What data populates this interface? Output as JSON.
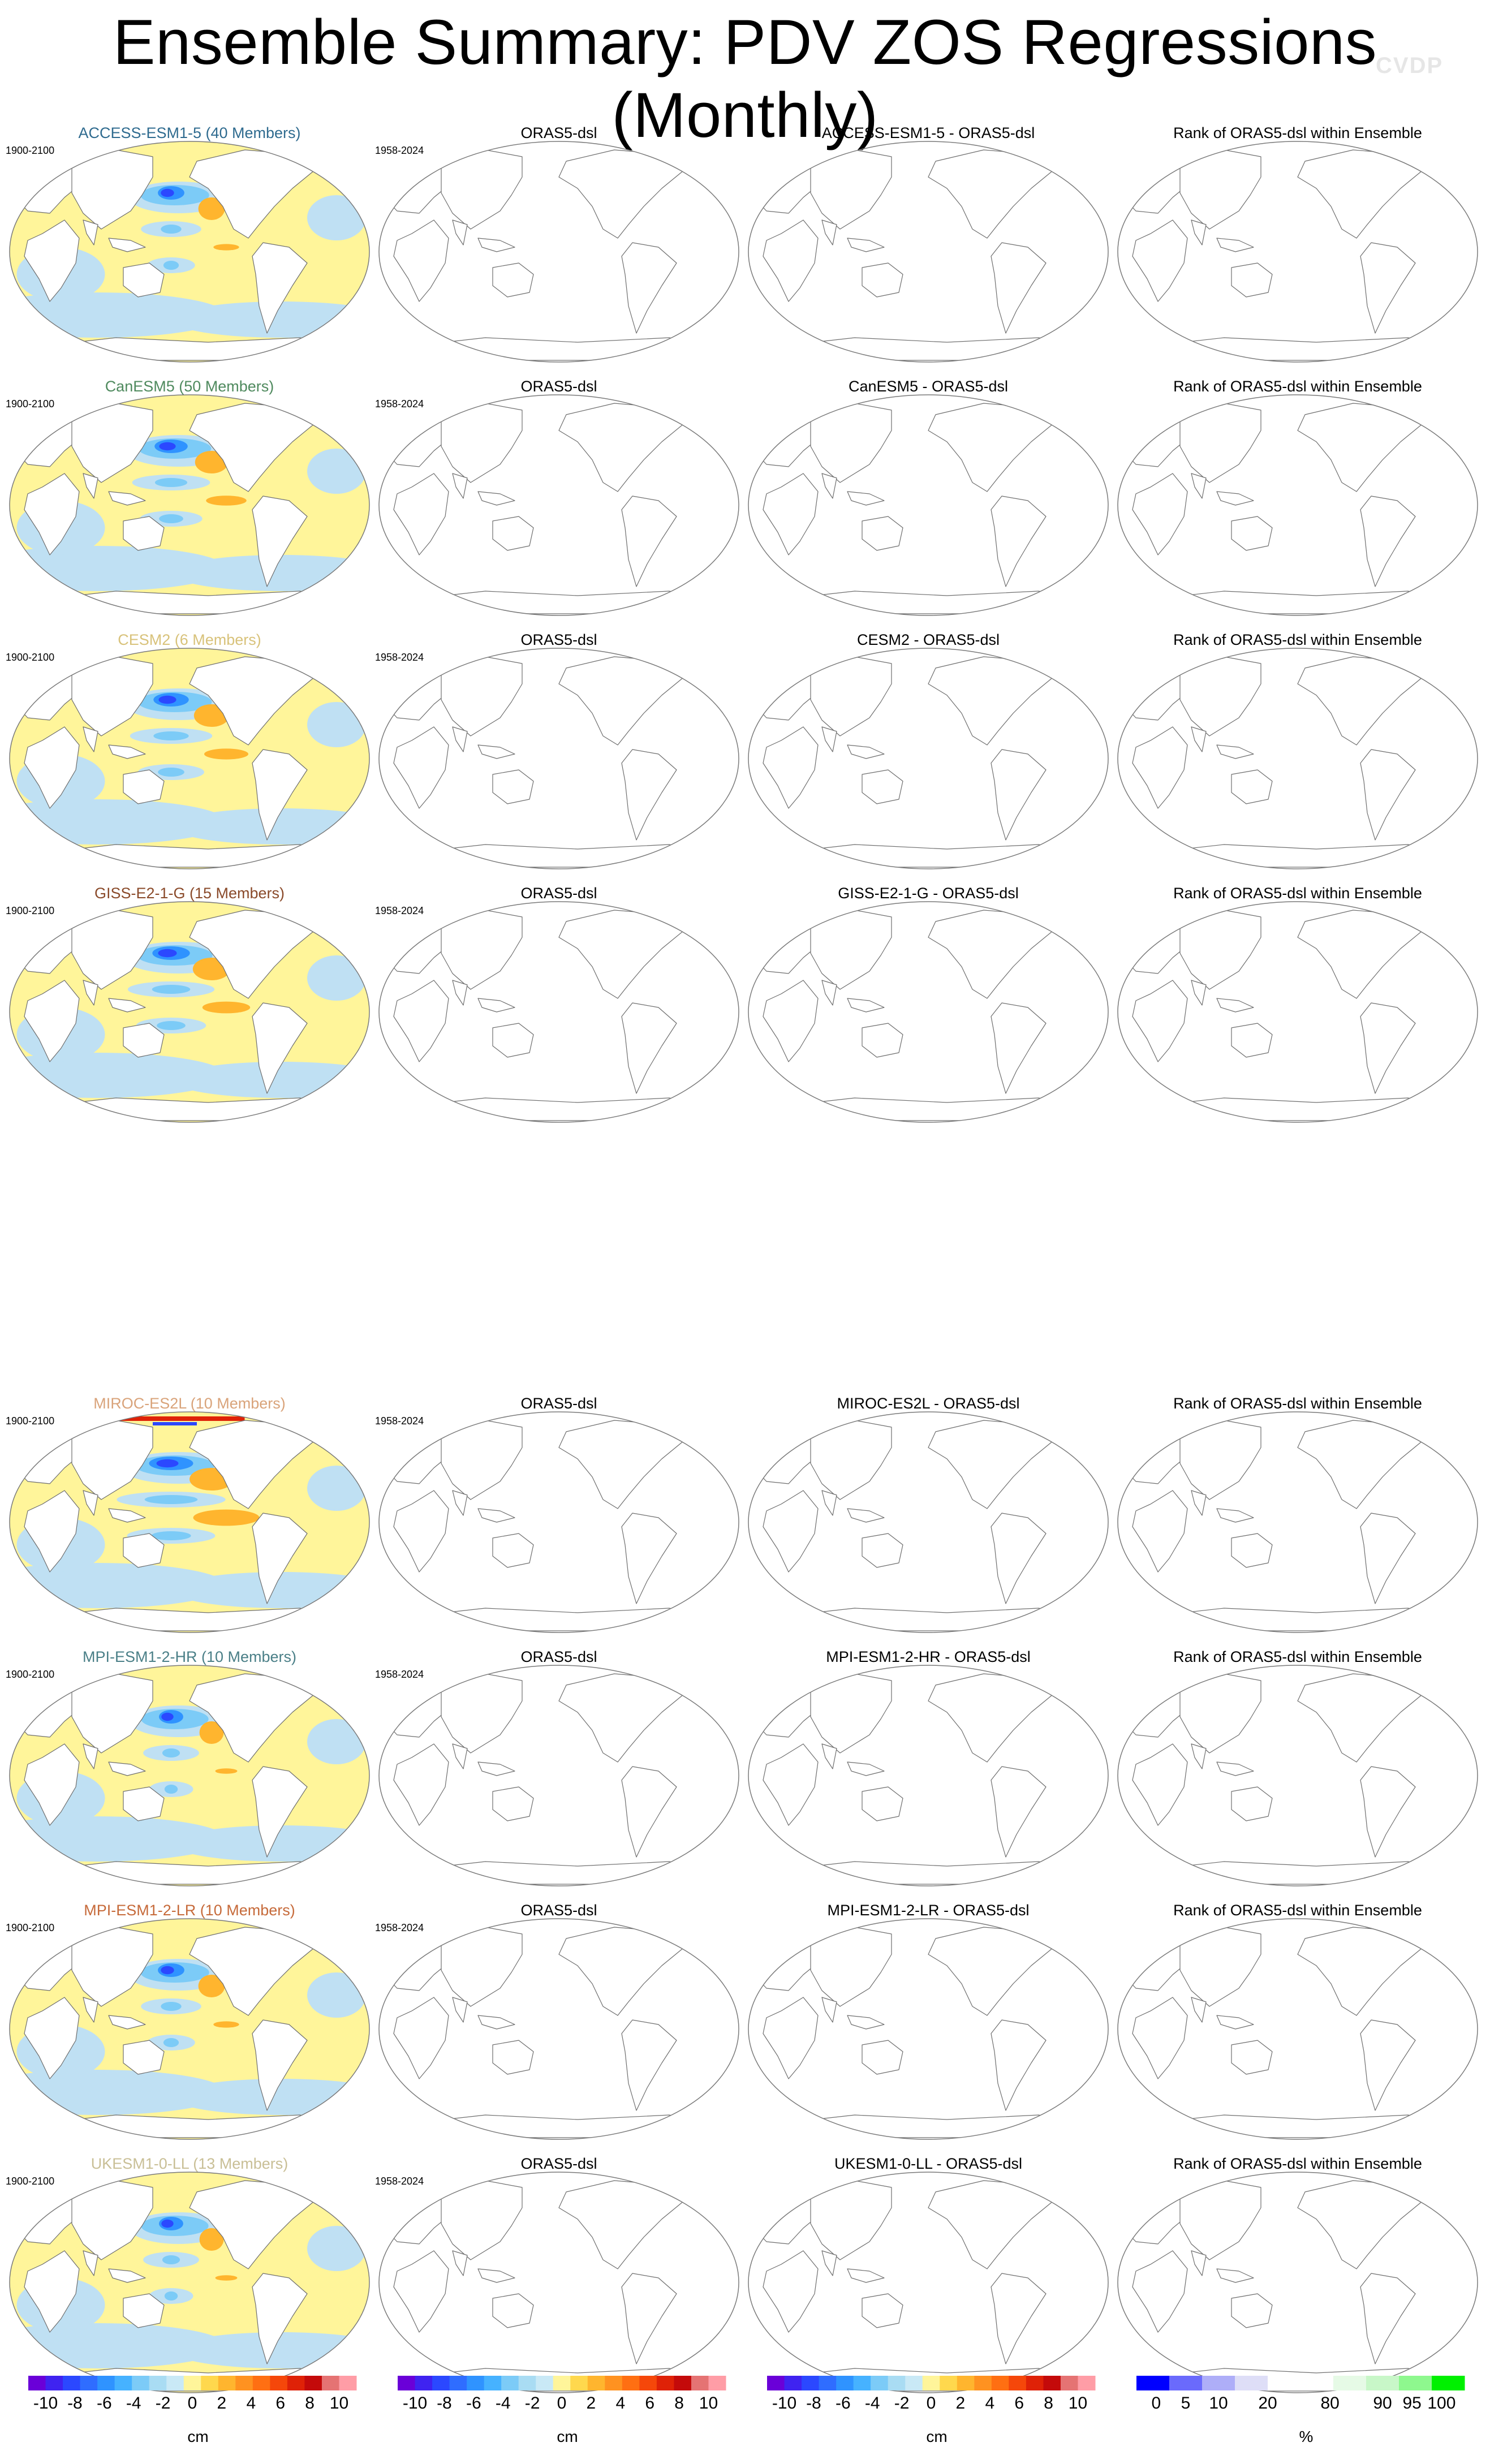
{
  "title": "Ensemble Summary: PDV ZOS Regressions (Monthly)",
  "watermark": "CVDP",
  "groups": [
    {
      "rows": [
        {
          "model": "ACCESS-ESM1-5 (40 Members)",
          "model_color": "#2f6b8f",
          "period_model": "1900-2100",
          "period_obs": "1958-2024",
          "obs_title": "ORAS5-dsl",
          "diff_title": "ACCESS-ESM1-5 - ORAS5-dsl",
          "rank_title": "Rank of ORAS5-dsl within Ensemble",
          "pattern": {
            "amp": 0.6,
            "westBlue": 1.0,
            "tropics": 0.35
          }
        },
        {
          "model": "CanESM5 (50 Members)",
          "model_color": "#4f8a5e",
          "period_model": "1900-2100",
          "period_obs": "1958-2024",
          "obs_title": "ORAS5-dsl",
          "diff_title": "CanESM5 - ORAS5-dsl",
          "rank_title": "Rank of ORAS5-dsl within Ensemble",
          "pattern": {
            "amp": 0.75,
            "westBlue": 1.0,
            "tropics": 0.55
          }
        },
        {
          "model": "CESM2 (6 Members)",
          "model_color": "#d8c27a",
          "period_model": "1900-2100",
          "period_obs": "1958-2024",
          "obs_title": "ORAS5-dsl",
          "diff_title": "CESM2 - ORAS5-dsl",
          "rank_title": "Rank of ORAS5-dsl within Ensemble",
          "pattern": {
            "amp": 0.8,
            "westBlue": 1.0,
            "tropics": 0.6
          }
        },
        {
          "model": "GISS-E2-1-G (15 Members)",
          "model_color": "#8a4a2a",
          "period_model": "1900-2100",
          "period_obs": "1958-2024",
          "obs_title": "ORAS5-dsl",
          "diff_title": "GISS-E2-1-G - ORAS5-dsl",
          "rank_title": "Rank of ORAS5-dsl within Ensemble",
          "pattern": {
            "amp": 0.85,
            "westBlue": 1.0,
            "tropics": 0.65
          }
        }
      ]
    },
    {
      "rows": [
        {
          "model": "MIROC-ES2L (10 Members)",
          "model_color": "#d9a37a",
          "period_model": "1900-2100",
          "period_obs": "1958-2024",
          "obs_title": "ORAS5-dsl",
          "diff_title": "MIROC-ES2L - ORAS5-dsl",
          "rank_title": "Rank of ORAS5-dsl within Ensemble",
          "pattern": {
            "amp": 1.0,
            "westBlue": 1.0,
            "tropics": 0.9
          }
        },
        {
          "model": "MPI-ESM1-2-HR (10 Members)",
          "model_color": "#4a7f87",
          "period_model": "1900-2100",
          "period_obs": "1958-2024",
          "obs_title": "ORAS5-dsl",
          "diff_title": "MPI-ESM1-2-HR - ORAS5-dsl",
          "rank_title": "Rank of ORAS5-dsl within Ensemble",
          "pattern": {
            "amp": 0.55,
            "westBlue": 1.0,
            "tropics": 0.3
          }
        },
        {
          "model": "MPI-ESM1-2-LR (10 Members)",
          "model_color": "#c66a3a",
          "period_model": "1900-2100",
          "period_obs": "1958-2024",
          "obs_title": "ORAS5-dsl",
          "diff_title": "MPI-ESM1-2-LR - ORAS5-dsl",
          "rank_title": "Rank of ORAS5-dsl within Ensemble",
          "pattern": {
            "amp": 0.6,
            "westBlue": 1.0,
            "tropics": 0.35
          }
        },
        {
          "model": "UKESM1-0-LL (13 Members)",
          "model_color": "#c9bf96",
          "period_model": "1900-2100",
          "period_obs": "1958-2024",
          "obs_title": "ORAS5-dsl",
          "diff_title": "UKESM1-0-LL - ORAS5-dsl",
          "rank_title": "Rank of ORAS5-dsl within Ensemble",
          "pattern": {
            "amp": 0.55,
            "westBlue": 1.0,
            "tropics": 0.3
          }
        }
      ]
    }
  ],
  "colorbars": [
    {
      "kind": "cm",
      "units": "cm",
      "colors": [
        "#6a00d8",
        "#3f23f0",
        "#2b48ff",
        "#2f6dff",
        "#2f93ff",
        "#46b2ff",
        "#7ccbf7",
        "#a9dcf3",
        "#c9e9f6",
        "#fff59a",
        "#ffd84d",
        "#ffb52e",
        "#ff9220",
        "#ff6f12",
        "#f5470a",
        "#df2207",
        "#c40a0a",
        "#e57373",
        "#ff9da6"
      ],
      "labels": [
        "-10",
        "-8",
        "-6",
        "-4",
        "-2",
        "0",
        "2",
        "4",
        "6",
        "8",
        "10"
      ]
    },
    {
      "kind": "cm",
      "units": "cm",
      "colors": [
        "#6a00d8",
        "#3f23f0",
        "#2b48ff",
        "#2f6dff",
        "#2f93ff",
        "#46b2ff",
        "#7ccbf7",
        "#a9dcf3",
        "#c9e9f6",
        "#fff59a",
        "#ffd84d",
        "#ffb52e",
        "#ff9220",
        "#ff6f12",
        "#f5470a",
        "#df2207",
        "#c40a0a",
        "#e57373",
        "#ff9da6"
      ],
      "labels": [
        "-10",
        "-8",
        "-6",
        "-4",
        "-2",
        "0",
        "2",
        "4",
        "6",
        "8",
        "10"
      ]
    },
    {
      "kind": "cm",
      "units": "cm",
      "colors": [
        "#6a00d8",
        "#3f23f0",
        "#2b48ff",
        "#2f6dff",
        "#2f93ff",
        "#46b2ff",
        "#7ccbf7",
        "#a9dcf3",
        "#c9e9f6",
        "#fff59a",
        "#ffd84d",
        "#ffb52e",
        "#ff9220",
        "#ff6f12",
        "#f5470a",
        "#df2207",
        "#c40a0a",
        "#e57373",
        "#ff9da6"
      ],
      "labels": [
        "-10",
        "-8",
        "-6",
        "-4",
        "-2",
        "0",
        "2",
        "4",
        "6",
        "8",
        "10"
      ]
    },
    {
      "kind": "pct",
      "units": "%",
      "colors": [
        "#0000ff",
        "#6a6afc",
        "#aeaef8",
        "#dedef7",
        "#ffffff",
        "#ffffff",
        "#e6fae6",
        "#c8f7c8",
        "#8ef88e",
        "#00f000"
      ],
      "labels": [
        "0",
        "5",
        "10",
        "20",
        "80",
        "90",
        "95",
        "100"
      ]
    }
  ],
  "color_scale": {
    "yellow": "#fff59a",
    "lightblue": "#bfe0f3",
    "blue1": "#7ccbf7",
    "blue2": "#2f93ff",
    "blue3": "#2b48ff",
    "orange": "#ffb52e",
    "red": "#df2207"
  }
}
